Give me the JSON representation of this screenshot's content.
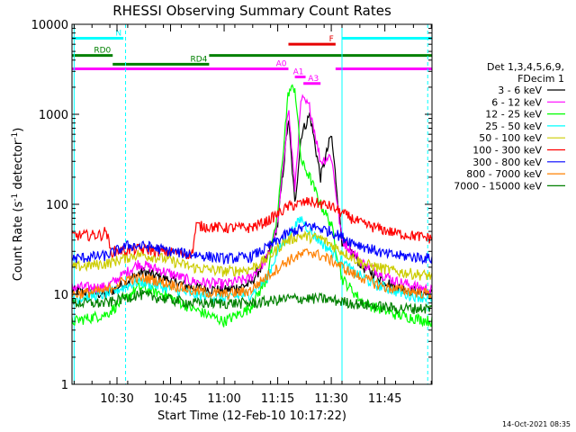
{
  "chart_data": {
    "type": "line",
    "title": "RHESSI Observing Summary Count Rates",
    "xlabel": "Start Time (12-Feb-10 10:17:22)",
    "ylabel_main": "Count Rate (s",
    "ylabel_sup1": "-1",
    "ylabel_mid": " detector",
    "ylabel_sup2": "-1",
    "ylabel_end": ")",
    "y_scale": "log",
    "ylim": [
      1,
      10000
    ],
    "xlim_minutes": [
      10.29,
      11.97
    ],
    "x_tick_labels": [
      "10:30",
      "10:45",
      "11:00",
      "11:15",
      "11:30",
      "11:45"
    ],
    "x_tick_values": [
      10.5,
      10.75,
      11.0,
      11.25,
      11.5,
      11.75
    ],
    "y_tick_labels": [
      "1",
      "10",
      "100",
      "1000",
      "10000"
    ],
    "y_tick_values": [
      1,
      10,
      100,
      1000,
      10000
    ],
    "legend_header": [
      "Det 1,3,4,5,6,9,",
      "FDecim 1"
    ],
    "legend_position": "right",
    "series": [
      {
        "name": "3 - 6 keV",
        "color": "#000000",
        "key": [
          [
            10.29,
            11
          ],
          [
            10.45,
            10
          ],
          [
            10.62,
            18
          ],
          [
            10.72,
            15
          ],
          [
            10.85,
            12
          ],
          [
            11.0,
            11
          ],
          [
            11.12,
            13
          ],
          [
            11.2,
            25
          ],
          [
            11.25,
            60
          ],
          [
            11.3,
            900
          ],
          [
            11.33,
            100
          ],
          [
            11.36,
            600
          ],
          [
            11.4,
            1000
          ],
          [
            11.45,
            200
          ],
          [
            11.5,
            600
          ],
          [
            11.55,
            40
          ],
          [
            11.65,
            20
          ],
          [
            11.8,
            12
          ],
          [
            11.97,
            10
          ]
        ]
      },
      {
        "name": "6 - 12 keV",
        "color": "#ff00ff",
        "key": [
          [
            10.29,
            12
          ],
          [
            10.45,
            12
          ],
          [
            10.6,
            22
          ],
          [
            10.72,
            18
          ],
          [
            10.85,
            14
          ],
          [
            11.0,
            13
          ],
          [
            11.12,
            15
          ],
          [
            11.2,
            25
          ],
          [
            11.25,
            60
          ],
          [
            11.3,
            1200
          ],
          [
            11.33,
            150
          ],
          [
            11.36,
            1500
          ],
          [
            11.4,
            1200
          ],
          [
            11.45,
            300
          ],
          [
            11.5,
            350
          ],
          [
            11.55,
            40
          ],
          [
            11.65,
            22
          ],
          [
            11.8,
            14
          ],
          [
            11.97,
            11
          ]
        ]
      },
      {
        "name": "12 - 25 keV",
        "color": "#00ff00",
        "key": [
          [
            10.29,
            5
          ],
          [
            10.45,
            6
          ],
          [
            10.6,
            12
          ],
          [
            10.72,
            10
          ],
          [
            10.85,
            7
          ],
          [
            11.0,
            5
          ],
          [
            11.12,
            7
          ],
          [
            11.2,
            15
          ],
          [
            11.25,
            80
          ],
          [
            11.3,
            1800
          ],
          [
            11.33,
            2000
          ],
          [
            11.36,
            300
          ],
          [
            11.4,
            200
          ],
          [
            11.45,
            100
          ],
          [
            11.5,
            60
          ],
          [
            11.55,
            15
          ],
          [
            11.65,
            8
          ],
          [
            11.8,
            6
          ],
          [
            11.97,
            5
          ]
        ]
      },
      {
        "name": "25 - 50 keV",
        "color": "#00ffff",
        "key": [
          [
            10.29,
            9
          ],
          [
            10.45,
            10
          ],
          [
            10.6,
            14
          ],
          [
            10.72,
            12
          ],
          [
            10.85,
            10
          ],
          [
            11.0,
            9
          ],
          [
            11.12,
            10
          ],
          [
            11.2,
            15
          ],
          [
            11.25,
            30
          ],
          [
            11.3,
            45
          ],
          [
            11.36,
            70
          ],
          [
            11.4,
            50
          ],
          [
            11.5,
            30
          ],
          [
            11.6,
            18
          ],
          [
            11.7,
            13
          ],
          [
            11.85,
            10
          ],
          [
            11.97,
            9
          ]
        ]
      },
      {
        "name": "50 - 100 keV",
        "color": "#cccc00",
        "key": [
          [
            10.29,
            20
          ],
          [
            10.45,
            22
          ],
          [
            10.6,
            28
          ],
          [
            10.72,
            25
          ],
          [
            10.85,
            20
          ],
          [
            11.0,
            18
          ],
          [
            11.12,
            19
          ],
          [
            11.2,
            25
          ],
          [
            11.28,
            38
          ],
          [
            11.35,
            45
          ],
          [
            11.45,
            42
          ],
          [
            11.55,
            30
          ],
          [
            11.65,
            22
          ],
          [
            11.8,
            18
          ],
          [
            11.97,
            16
          ]
        ]
      },
      {
        "name": "100 - 300 keV",
        "color": "#ff0000",
        "key": [
          [
            10.29,
            45
          ],
          [
            10.43,
            46
          ],
          [
            10.45,
            52
          ],
          [
            10.47,
            30
          ],
          [
            10.6,
            32
          ],
          [
            10.72,
            30
          ],
          [
            10.85,
            28
          ],
          [
            10.87,
            58
          ],
          [
            11.0,
            55
          ],
          [
            11.12,
            55
          ],
          [
            11.2,
            65
          ],
          [
            11.3,
            95
          ],
          [
            11.4,
            108
          ],
          [
            11.5,
            95
          ],
          [
            11.55,
            80
          ],
          [
            11.65,
            60
          ],
          [
            11.8,
            48
          ],
          [
            11.97,
            42
          ]
        ]
      },
      {
        "name": "300 - 800 keV",
        "color": "#0000ff",
        "key": [
          [
            10.29,
            25
          ],
          [
            10.45,
            27
          ],
          [
            10.55,
            35
          ],
          [
            10.65,
            34
          ],
          [
            10.75,
            30
          ],
          [
            10.85,
            28
          ],
          [
            11.0,
            25
          ],
          [
            11.12,
            26
          ],
          [
            11.2,
            33
          ],
          [
            11.3,
            48
          ],
          [
            11.4,
            58
          ],
          [
            11.5,
            50
          ],
          [
            11.6,
            38
          ],
          [
            11.75,
            28
          ],
          [
            11.97,
            25
          ]
        ]
      },
      {
        "name": "800 - 7000 keV",
        "color": "#ff8000",
        "key": [
          [
            10.29,
            10
          ],
          [
            10.45,
            11
          ],
          [
            10.55,
            15
          ],
          [
            10.65,
            15
          ],
          [
            10.75,
            13
          ],
          [
            10.85,
            11
          ],
          [
            11.0,
            10
          ],
          [
            11.12,
            11
          ],
          [
            11.2,
            16
          ],
          [
            11.3,
            24
          ],
          [
            11.4,
            30
          ],
          [
            11.5,
            24
          ],
          [
            11.6,
            17
          ],
          [
            11.75,
            12
          ],
          [
            11.97,
            10
          ]
        ]
      },
      {
        "name": "7000 - 15000 keV",
        "color": "#008000",
        "key": [
          [
            10.29,
            8
          ],
          [
            10.45,
            8
          ],
          [
            10.6,
            10
          ],
          [
            10.72,
            9
          ],
          [
            10.85,
            8
          ],
          [
            11.0,
            8
          ],
          [
            11.15,
            8
          ],
          [
            11.3,
            9
          ],
          [
            11.45,
            9
          ],
          [
            11.6,
            8
          ],
          [
            11.8,
            7
          ],
          [
            11.97,
            7
          ]
        ]
      }
    ],
    "vertical_lines": [
      {
        "x": 10.3,
        "style": "solid",
        "color": "#00ffff"
      },
      {
        "x": 10.54,
        "style": "dashed",
        "color": "#00ffff"
      },
      {
        "x": 11.55,
        "style": "solid",
        "color": "#00ffff"
      },
      {
        "x": 11.95,
        "style": "dashed",
        "color": "#00ffff"
      }
    ],
    "annotations": [
      {
        "label": "N",
        "color": "#00ffff",
        "bars": [
          [
            10.29,
            10.53
          ],
          [
            11.55,
            11.97
          ]
        ],
        "level": 7000
      },
      {
        "label": "F",
        "color": "#e60000",
        "bars": [
          [
            11.3,
            11.52
          ]
        ],
        "level": 6000
      },
      {
        "label": "RD0",
        "color": "#008000",
        "bars": [
          [
            10.29,
            10.48
          ],
          [
            10.93,
            11.97
          ]
        ],
        "level": 4500
      },
      {
        "label": "RD4",
        "color": "#008000",
        "bars": [
          [
            10.48,
            10.93
          ]
        ],
        "level": 3600
      },
      {
        "label": "A0",
        "color": "#ff00ff",
        "bars": [
          [
            10.29,
            11.3
          ],
          [
            11.52,
            11.97
          ]
        ],
        "level": 3200
      },
      {
        "label": "A1",
        "color": "#ff00ff",
        "bars": [
          [
            11.33,
            11.38
          ]
        ],
        "level": 2600
      },
      {
        "label": "A3",
        "color": "#ff00ff",
        "bars": [
          [
            11.37,
            11.45
          ]
        ],
        "level": 2200
      }
    ],
    "grid": false
  },
  "footer": {
    "timestamp": "14-Oct-2021 08:35"
  }
}
